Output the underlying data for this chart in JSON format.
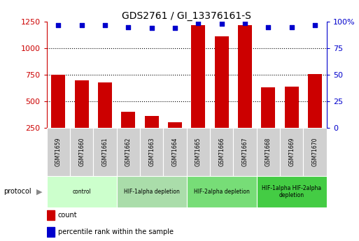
{
  "title": "GDS2761 / GI_13376161-S",
  "samples": [
    "GSM71659",
    "GSM71660",
    "GSM71661",
    "GSM71662",
    "GSM71663",
    "GSM71664",
    "GSM71665",
    "GSM71666",
    "GSM71667",
    "GSM71668",
    "GSM71669",
    "GSM71670"
  ],
  "counts": [
    750,
    700,
    680,
    400,
    360,
    305,
    1220,
    1115,
    1220,
    630,
    635,
    755
  ],
  "percentiles": [
    97,
    97,
    97,
    95,
    94,
    94,
    99,
    98,
    99,
    95,
    95,
    97
  ],
  "ylim_left": [
    250,
    1250
  ],
  "ylim_right": [
    0,
    100
  ],
  "yticks_left": [
    250,
    500,
    750,
    1000,
    1250
  ],
  "yticks_right": [
    0,
    25,
    50,
    75,
    100
  ],
  "bar_color": "#cc0000",
  "dot_color": "#0000cc",
  "bg_color": "#ffffff",
  "grid_color": "#000000",
  "sample_cell_color": "#d0d0d0",
  "protocol_groups": [
    {
      "label": "control",
      "start": 0,
      "end": 2,
      "color": "#ccffcc"
    },
    {
      "label": "HIF-1alpha depletion",
      "start": 3,
      "end": 5,
      "color": "#aaeea a"
    },
    {
      "label": "HIF-2alpha depletion",
      "start": 6,
      "end": 8,
      "color": "#77dd77"
    },
    {
      "label": "HIF-1alpha HIF-2alpha\ndepletion",
      "start": 9,
      "end": 11,
      "color": "#44cc44"
    }
  ],
  "tick_label_color": "#cc0000",
  "right_tick_color": "#0000cc",
  "legend_items": [
    {
      "label": "count",
      "color": "#cc0000"
    },
    {
      "label": "percentile rank within the sample",
      "color": "#0000cc"
    }
  ]
}
